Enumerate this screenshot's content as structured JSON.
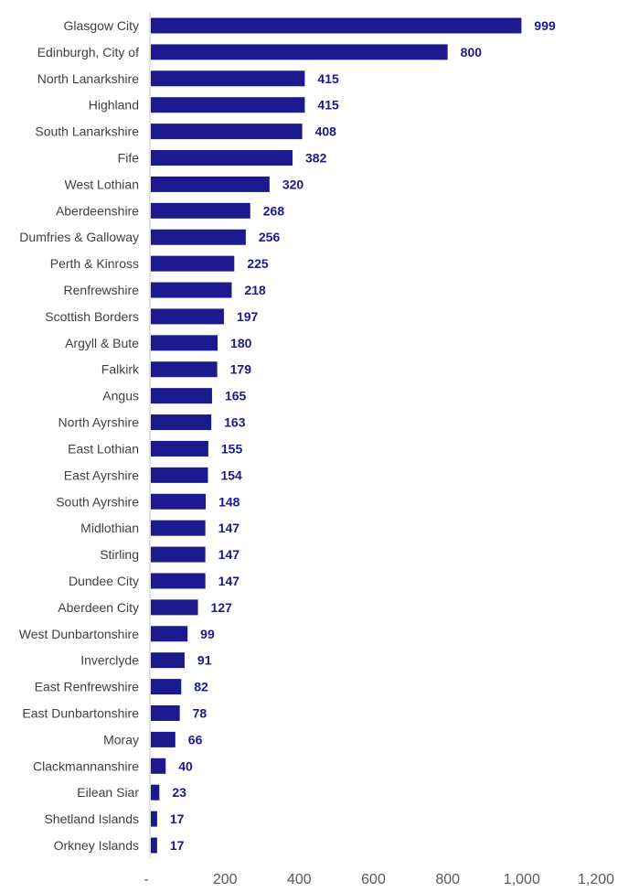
{
  "chart_data": {
    "type": "bar",
    "orientation": "horizontal",
    "categories": [
      "Glasgow City",
      "Edinburgh, City of",
      "North Lanarkshire",
      "Highland",
      "South Lanarkshire",
      "Fife",
      "West Lothian",
      "Aberdeenshire",
      "Dumfries & Galloway",
      "Perth & Kinross",
      "Renfrewshire",
      "Scottish Borders",
      "Argyll & Bute",
      "Falkirk",
      "Angus",
      "North Ayrshire",
      "East Lothian",
      "East Ayrshire",
      "South Ayrshire",
      "Midlothian",
      "Stirling",
      "Dundee City",
      "Aberdeen City",
      "West Dunbartonshire",
      "Inverclyde",
      "East Renfrewshire",
      "East Dunbartonshire",
      "Moray",
      "Clackmannanshire",
      "Eilean Siar",
      "Shetland Islands",
      "Orkney Islands"
    ],
    "values": [
      999,
      800,
      415,
      415,
      408,
      382,
      320,
      268,
      256,
      225,
      218,
      197,
      180,
      179,
      165,
      163,
      155,
      154,
      148,
      147,
      147,
      147,
      127,
      99,
      91,
      82,
      78,
      66,
      40,
      23,
      17,
      17
    ],
    "xlim": [
      0,
      1200
    ],
    "xticks": [
      0,
      200,
      400,
      600,
      800,
      1000,
      1200
    ],
    "xtick_labels": [
      "-",
      "200",
      "400",
      "600",
      "800",
      "1,000",
      "1,200"
    ],
    "grid": false,
    "legend": "none",
    "title": "",
    "xlabel": "",
    "ylabel": "",
    "colors": {
      "bar": "#1c1a8e",
      "data_label": "#1a1a8c",
      "axis": "#d9d9d9"
    }
  }
}
